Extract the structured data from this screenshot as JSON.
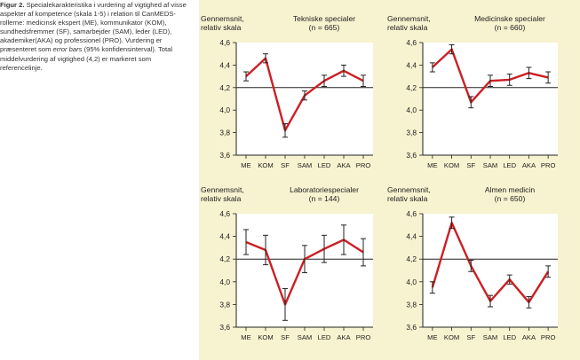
{
  "caption": {
    "label": "Figur 2.",
    "part1": "Specialekarakteristika i vurdering af vigtighed af visse aspekter af kompetence (skala 1-5) i relation til CanMEDS-rollerne: medicinsk ekspert (ME), kommunikator (KOM), sundhedsfremmer (SF), samarbejder (SAM), leder (LED), akademiker(AKA) og professionel (PRO). Vurdering er præsenteret som",
    "emphasis": "error bars",
    "part2": "(95% konfidensinterval). Total middelvurdering af vigtighed (4,2) er markeret som referencelinje."
  },
  "colors": {
    "panel_bg": "#f7f2cf",
    "plot_bg": "#ffffff",
    "line": "#cc1f24",
    "axis": "#222222"
  },
  "chart_data": [
    {
      "type": "line",
      "ylabel": "Gennemsnit,\nrelativ skala",
      "title": "Tekniske specialer",
      "subtitle": "(n = 665)",
      "categories": [
        "ME",
        "KOM",
        "SF",
        "SAM",
        "LED",
        "AKA",
        "PRO"
      ],
      "yticks": [
        "4,6",
        "4,4",
        "4,2",
        "4,0",
        "3,8",
        "3,6"
      ],
      "ylim": [
        3.6,
        4.6
      ],
      "reference_line": 4.2,
      "values": [
        4.3,
        4.46,
        3.82,
        4.13,
        4.26,
        4.35,
        4.26
      ],
      "ci_low": [
        4.26,
        4.42,
        3.76,
        4.09,
        4.21,
        4.3,
        4.21
      ],
      "ci_high": [
        4.34,
        4.5,
        3.88,
        4.17,
        4.31,
        4.4,
        4.31
      ]
    },
    {
      "type": "line",
      "ylabel": "Gennemsnit,\nrelativ skala",
      "title": "Medicinske specialer",
      "subtitle": "(n = 660)",
      "categories": [
        "ME",
        "KOM",
        "SF",
        "SAM",
        "LED",
        "AKA",
        "PRO"
      ],
      "yticks": [
        "4,6",
        "4,4",
        "4,2",
        "4,0",
        "3,8",
        "3,6"
      ],
      "ylim": [
        3.6,
        4.6
      ],
      "reference_line": 4.2,
      "values": [
        4.38,
        4.54,
        4.07,
        4.26,
        4.27,
        4.33,
        4.29
      ],
      "ci_low": [
        4.34,
        4.5,
        4.02,
        4.21,
        4.22,
        4.28,
        4.24
      ],
      "ci_high": [
        4.42,
        4.58,
        4.12,
        4.31,
        4.32,
        4.38,
        4.34
      ]
    },
    {
      "type": "line",
      "ylabel": "Gennemsnit,\nrelativ skala",
      "title": "Laboratoriespecialer",
      "subtitle": "(n = 144)",
      "categories": [
        "ME",
        "KOM",
        "SF",
        "SAM",
        "LED",
        "AKA",
        "PRO"
      ],
      "yticks": [
        "4,6",
        "4,4",
        "4,2",
        "4,0",
        "3,8",
        "3,6"
      ],
      "ylim": [
        3.6,
        4.6
      ],
      "reference_line": 4.2,
      "values": [
        4.35,
        4.28,
        3.8,
        4.2,
        4.29,
        4.37,
        4.26
      ],
      "ci_low": [
        4.24,
        4.15,
        3.66,
        4.08,
        4.17,
        4.24,
        4.14
      ],
      "ci_high": [
        4.46,
        4.41,
        3.94,
        4.32,
        4.41,
        4.5,
        4.38
      ]
    },
    {
      "type": "line",
      "ylabel": "Gennemsnit,\nrelativ skala",
      "title": "Almen medicin",
      "subtitle": "(n = 650)",
      "categories": [
        "ME",
        "KOM",
        "SF",
        "SAM",
        "LED",
        "AKA",
        "PRO"
      ],
      "yticks": [
        "4,6",
        "4,4",
        "4,2",
        "4,0",
        "3,8",
        "3,6"
      ],
      "ylim": [
        3.6,
        4.6
      ],
      "reference_line": 4.2,
      "values": [
        3.95,
        4.52,
        4.14,
        3.83,
        4.02,
        3.82,
        4.09
      ],
      "ci_low": [
        3.9,
        4.47,
        4.09,
        3.78,
        3.98,
        3.77,
        4.04
      ],
      "ci_high": [
        4.0,
        4.57,
        4.19,
        3.88,
        4.06,
        3.87,
        4.14
      ]
    }
  ]
}
